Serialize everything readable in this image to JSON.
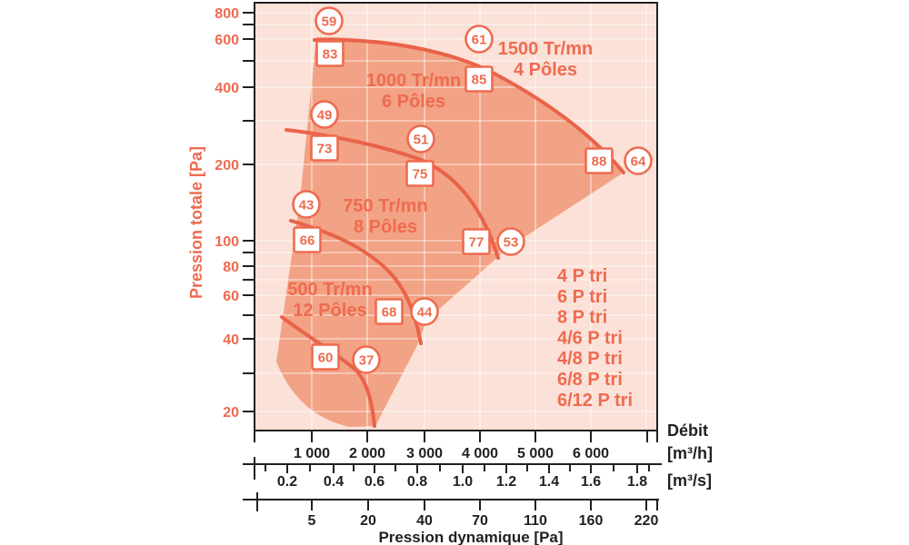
{
  "chart_data": {
    "type": "line",
    "y_axis": {
      "label": "Pression totale [Pa]",
      "scale": "log",
      "range": [
        20,
        800
      ],
      "ticks": [
        800,
        600,
        400,
        200,
        100,
        80,
        60,
        40,
        20
      ],
      "minor_ticks": [
        700,
        500,
        300,
        90,
        70,
        50,
        30
      ]
    },
    "x_axis_flow_m3h": {
      "label": "Débit",
      "unit": "[m³/h]",
      "scale": "linear",
      "ticks": [
        "1 000",
        "2 000",
        "3 000",
        "4 000",
        "5 000",
        "6 000"
      ]
    },
    "x_axis_flow_m3s": {
      "unit": "[m³/s]",
      "ticks": [
        "0.2",
        "0.4",
        "0.6",
        "0.8",
        "1.0",
        "1.2",
        "1.4",
        "1.6",
        "1.8"
      ]
    },
    "x_axis_dynamic_pressure": {
      "label": "Pression dynamique [Pa]",
      "ticks": [
        "5",
        "20",
        "40",
        "70",
        "110",
        "160",
        "220"
      ]
    },
    "curves": [
      {
        "rpm": "1500 Tr/mn",
        "poles": "4 Pôles",
        "approx_points_m3h_Pa": [
          [
            1050,
            620
          ],
          [
            4000,
            433
          ],
          [
            6600,
            185
          ]
        ],
        "markers": [
          {
            "shape": "circle",
            "value": "59"
          },
          {
            "shape": "square",
            "value": "83"
          },
          {
            "shape": "circle",
            "value": "61"
          },
          {
            "shape": "square",
            "value": "85"
          },
          {
            "shape": "square",
            "value": "88"
          },
          {
            "shape": "circle",
            "value": "64"
          }
        ]
      },
      {
        "rpm": "1000 Tr/mn",
        "poles": "6 Pôles",
        "approx_points_m3h_Pa": [
          [
            540,
            270
          ],
          [
            2900,
            140
          ],
          [
            4340,
            83
          ]
        ],
        "markers": [
          {
            "shape": "circle",
            "value": "49"
          },
          {
            "shape": "square",
            "value": "73"
          },
          {
            "shape": "circle",
            "value": "51"
          },
          {
            "shape": "square",
            "value": "75"
          },
          {
            "shape": "square",
            "value": "77"
          },
          {
            "shape": "circle",
            "value": "53"
          }
        ]
      },
      {
        "rpm": "750 Tr/mn",
        "poles": "8 Pôles",
        "approx_points_m3h_Pa": [
          [
            625,
            117
          ],
          [
            2300,
            60
          ],
          [
            2960,
            38
          ]
        ],
        "markers": [
          {
            "shape": "circle",
            "value": "43"
          },
          {
            "shape": "square",
            "value": "66"
          },
          {
            "shape": "square",
            "value": "68"
          },
          {
            "shape": "circle",
            "value": "44"
          }
        ]
      },
      {
        "rpm": "500 Tr/mn",
        "poles": "12 Pôles",
        "approx_points_m3h_Pa": [
          [
            460,
            48
          ],
          [
            1600,
            30
          ],
          [
            2125,
            20
          ]
        ],
        "markers": [
          {
            "shape": "square",
            "value": "60"
          },
          {
            "shape": "circle",
            "value": "37"
          }
        ]
      }
    ],
    "legend": [
      "4 P tri",
      "6 P tri",
      "8 P tri",
      "4/6 P tri",
      "4/8 P tri",
      "6/8 P tri",
      "6/12 P tri"
    ],
    "colors": {
      "accent_stroke": "#E96349",
      "accent_text": "#EE6B4F",
      "region_fill": "#F2A285",
      "plot_background": "#FBE1D8",
      "grid": "rgba(255,255,255,0.45)",
      "axis_black": "#231F20"
    }
  }
}
